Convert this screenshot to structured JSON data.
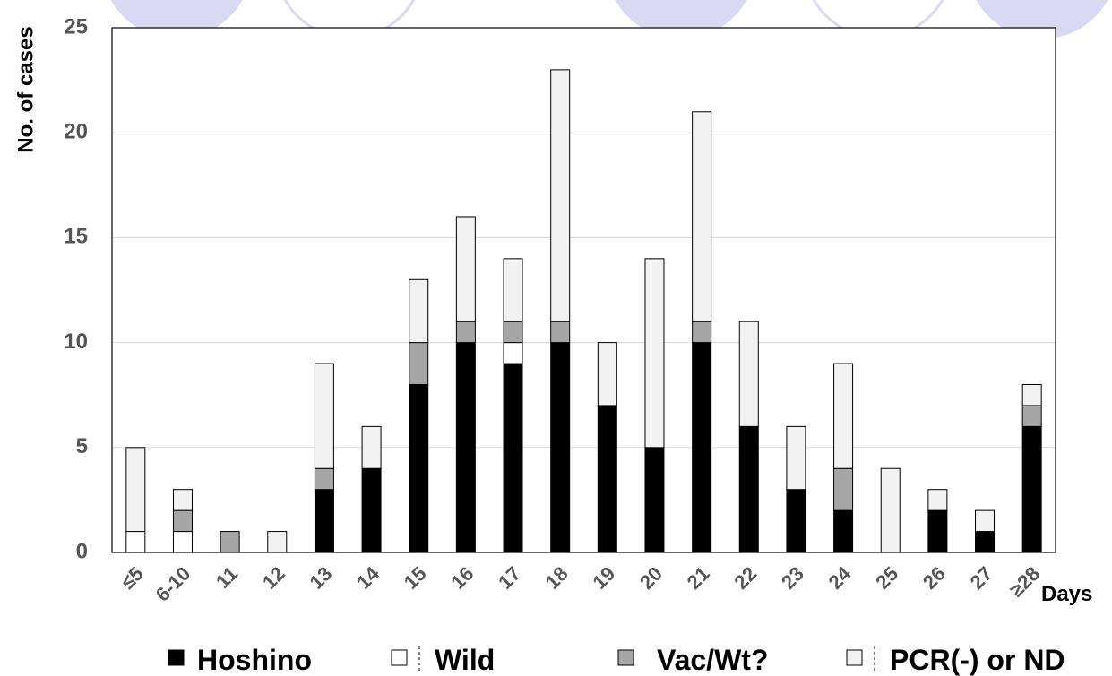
{
  "chart_data": {
    "type": "bar",
    "stacked": true,
    "ylabel": "No. of cases",
    "xlabel": "Days",
    "ylim": [
      0,
      25
    ],
    "yticks": [
      0,
      5,
      10,
      15,
      20,
      25
    ],
    "grid": true,
    "legend_position": "bottom",
    "categories": [
      "≤5",
      "6-10",
      "11",
      "12",
      "13",
      "14",
      "15",
      "16",
      "17",
      "18",
      "19",
      "20",
      "21",
      "22",
      "23",
      "24",
      "25",
      "26",
      "27",
      "≥28"
    ],
    "series": [
      {
        "name": "Hoshino",
        "color": "#000000",
        "values": [
          0,
          0,
          0,
          0,
          3,
          4,
          8,
          10,
          9,
          10,
          7,
          5,
          10,
          6,
          3,
          2,
          0,
          2,
          1,
          6
        ]
      },
      {
        "name": "Wild",
        "color": "#ffffff",
        "values": [
          1,
          1,
          0,
          0,
          0,
          0,
          0,
          0,
          1,
          0,
          0,
          0,
          0,
          0,
          0,
          0,
          0,
          0,
          0,
          0
        ]
      },
      {
        "name": "Vac/Wt?",
        "color": "#a6a6a6",
        "values": [
          0,
          1,
          1,
          0,
          1,
          0,
          2,
          1,
          1,
          1,
          0,
          0,
          1,
          0,
          0,
          2,
          0,
          0,
          0,
          1
        ]
      },
      {
        "name": "PCR(-) or ND",
        "color": "#f2f2f2",
        "values": [
          4,
          1,
          0,
          1,
          5,
          2,
          3,
          5,
          3,
          12,
          3,
          9,
          10,
          5,
          3,
          5,
          4,
          1,
          1,
          1
        ]
      }
    ],
    "decoration_color": "#d9d9f3"
  }
}
